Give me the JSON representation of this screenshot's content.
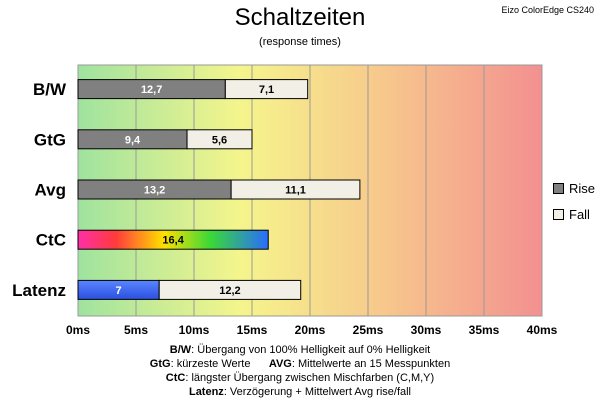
{
  "header": {
    "title": "Schaltzeiten",
    "subtitle": "(response times)",
    "corner_label": "Eizo ColorEdge CS240"
  },
  "legend": {
    "items": [
      {
        "label": "Rise",
        "color": "#808080"
      },
      {
        "label": "Fall",
        "color": "#f2f0e6"
      }
    ]
  },
  "notes": [
    {
      "key": "B/W",
      "text": ": Übergang von 100% Helligkeit auf 0% Helligkeit"
    },
    {
      "key": "GtG",
      "text": ": kürzeste Werte",
      "key2": "AVG",
      "text2": ": Mittelwerte an 15 Messpunkten"
    },
    {
      "key": "CtC",
      "text": ": längster Übergang zwischen Mischfarben (C,M,Y)"
    },
    {
      "key": "Latenz",
      "text": ": Verzögerung + Mittelwert Avg rise/fall"
    }
  ],
  "chart_data": {
    "type": "bar",
    "orientation": "horizontal",
    "stacked": true,
    "title": "Schaltzeiten",
    "subtitle": "(response times)",
    "categories": [
      "B/W",
      "GtG",
      "Avg",
      "CtC",
      "Latenz"
    ],
    "series": [
      {
        "name": "Rise",
        "values": [
          12.7,
          9.4,
          13.2,
          16.4,
          7
        ],
        "color": "#808080"
      },
      {
        "name": "Fall",
        "values": [
          7.1,
          5.6,
          11.1,
          null,
          12.2
        ],
        "color": "#f2f0e6"
      }
    ],
    "special_fills": {
      "CtC": "rainbow",
      "Latenz": "blue"
    },
    "xlim": [
      0,
      40
    ],
    "xticks": [
      "0ms",
      "5ms",
      "10ms",
      "15ms",
      "20ms",
      "25ms",
      "30ms",
      "35ms",
      "40ms"
    ],
    "grid": true,
    "background_gradient": [
      "#9fe39f",
      "#f5f58c",
      "#f7c98c",
      "#f39090"
    ],
    "legend_position": "right"
  }
}
